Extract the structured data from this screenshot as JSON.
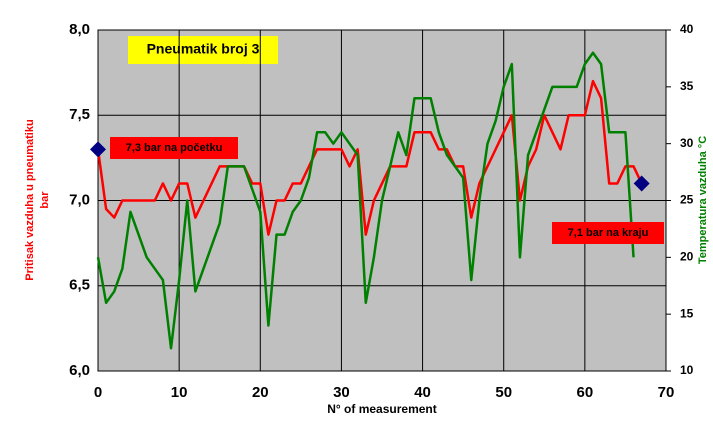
{
  "chart_data": {
    "type": "line",
    "title": "Pneumatik broj 3",
    "xlabel": "N° of measurement",
    "ylabel": [
      "Pritisak vazduha u pneumatiku",
      "bar"
    ],
    "y2label": "Temperatura vazduha   °C",
    "x": [
      0,
      1,
      2,
      3,
      4,
      5,
      6,
      7,
      8,
      9,
      10,
      11,
      12,
      13,
      14,
      15,
      16,
      17,
      18,
      19,
      20,
      21,
      22,
      23,
      24,
      25,
      26,
      27,
      28,
      29,
      30,
      31,
      32,
      33,
      34,
      35,
      36,
      37,
      38,
      39,
      40,
      41,
      42,
      43,
      44,
      45,
      46,
      47,
      48,
      49,
      50,
      51,
      52,
      53,
      54,
      55,
      56,
      57,
      58,
      59,
      60,
      61,
      62,
      63,
      64,
      65,
      66,
      67
    ],
    "series": [
      {
        "name": "Pritisak",
        "color": "#ff0000",
        "axis": "y",
        "values": [
          7.3,
          6.95,
          6.9,
          7.0,
          7.0,
          7.0,
          7.0,
          7.0,
          7.1,
          7.0,
          7.1,
          7.1,
          6.9,
          7.0,
          7.1,
          7.2,
          7.2,
          7.2,
          7.2,
          7.1,
          7.1,
          6.8,
          7.0,
          7.0,
          7.1,
          7.1,
          7.2,
          7.3,
          7.3,
          7.3,
          7.3,
          7.2,
          7.3,
          6.8,
          7.0,
          7.1,
          7.2,
          7.2,
          7.2,
          7.4,
          7.4,
          7.4,
          7.3,
          7.3,
          7.2,
          7.2,
          6.9,
          7.1,
          7.2,
          7.3,
          7.4,
          7.5,
          7.0,
          7.2,
          7.3,
          7.5,
          7.4,
          7.3,
          7.5,
          7.5,
          7.5,
          7.7,
          7.6,
          7.1,
          7.1,
          7.2,
          7.2,
          7.1
        ]
      },
      {
        "name": "Temperatura",
        "color": "#008000",
        "axis": "y2",
        "values": [
          20,
          16,
          17,
          19,
          24,
          22,
          20,
          19,
          18,
          12,
          18,
          25,
          17,
          19,
          21,
          23,
          28,
          28,
          28,
          26,
          24,
          14,
          22,
          22,
          24,
          25,
          27,
          31,
          31,
          30,
          31,
          30,
          29,
          16,
          20,
          25,
          28,
          31,
          29,
          34,
          34,
          34,
          31,
          29,
          28,
          27,
          18,
          25,
          30,
          32,
          35,
          37,
          20,
          29,
          31,
          33,
          35,
          35,
          35,
          35,
          37,
          38,
          37,
          31,
          31,
          31,
          20,
          null
        ]
      }
    ],
    "highlights": {
      "x": [
        0,
        67
      ],
      "values": [
        7.3,
        7.1
      ],
      "color": "#000080"
    },
    "annotations": [
      "7,3 bar na početku",
      "7,1 bar na kraju"
    ],
    "xlim": [
      0,
      70
    ],
    "xticks": [
      0,
      10,
      20,
      30,
      40,
      50,
      60,
      70
    ],
    "ylim": [
      6.0,
      8.0
    ],
    "yticks": [
      {
        "value": 6.0,
        "label": "6,0"
      },
      {
        "value": 6.5,
        "label": "6,5"
      },
      {
        "value": 7.0,
        "label": "7,0"
      },
      {
        "value": 7.5,
        "label": "7,5"
      },
      {
        "value": 8.0,
        "label": "8,0"
      }
    ],
    "y2lim": [
      10,
      40
    ],
    "y2ticks": [
      10,
      15,
      20,
      25,
      30,
      35,
      40
    ],
    "grid": true
  }
}
